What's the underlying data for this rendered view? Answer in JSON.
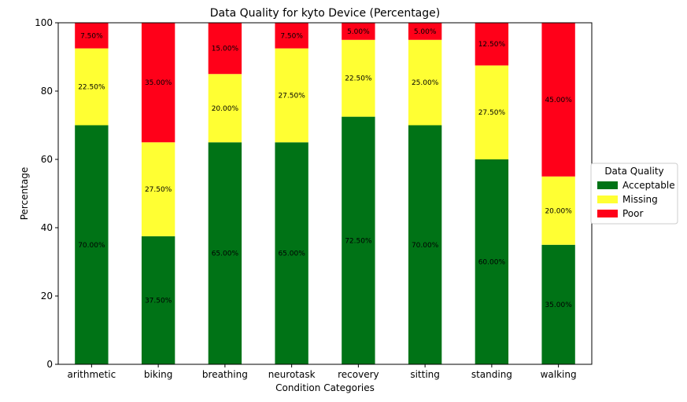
{
  "chart_data": {
    "type": "bar",
    "stacked": true,
    "title": "Data Quality for kyto Device (Percentage)",
    "xlabel": "Condition Categories",
    "ylabel": "Percentage",
    "ylim": [
      0,
      100
    ],
    "yticks": [
      0,
      20,
      40,
      60,
      80,
      100
    ],
    "categories": [
      "arithmetic",
      "biking",
      "breathing",
      "neurotask",
      "recovery",
      "sitting",
      "standing",
      "walking"
    ],
    "series": [
      {
        "name": "Acceptable",
        "color": "#007316",
        "values": [
          70.0,
          37.5,
          65.0,
          65.0,
          72.5,
          70.0,
          60.0,
          35.0
        ],
        "labels": [
          "70.00%",
          "37.50%",
          "65.00%",
          "65.00%",
          "72.50%",
          "70.00%",
          "60.00%",
          "35.00%"
        ]
      },
      {
        "name": "Missing",
        "color": "#ffff33",
        "values": [
          22.5,
          27.5,
          20.0,
          27.5,
          22.5,
          25.0,
          27.5,
          20.0
        ],
        "labels": [
          "22.50%",
          "27.50%",
          "20.00%",
          "27.50%",
          "22.50%",
          "25.00%",
          "27.50%",
          "20.00%"
        ]
      },
      {
        "name": "Poor",
        "color": "#ff0019",
        "values": [
          7.5,
          35.0,
          15.0,
          7.5,
          5.0,
          5.0,
          12.5,
          45.0
        ],
        "labels": [
          "7.50%",
          "35.00%",
          "15.00%",
          "7.50%",
          "5.00%",
          "5.00%",
          "12.50%",
          "45.00%"
        ]
      }
    ],
    "legend": {
      "title": "Data Quality",
      "placement": "center-right-outside"
    },
    "grid": false
  }
}
